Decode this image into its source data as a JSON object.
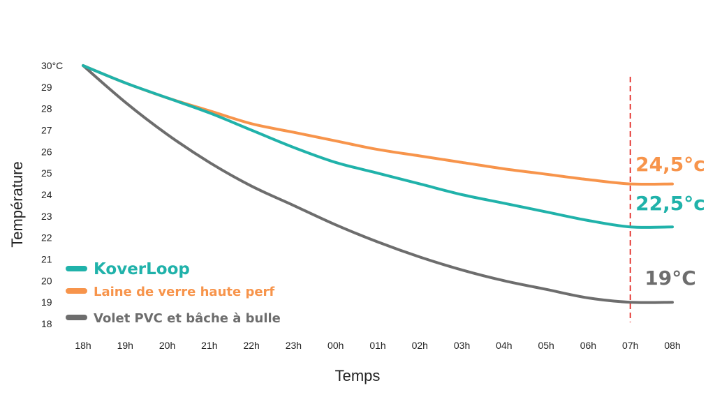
{
  "chart_data": {
    "type": "line",
    "xlabel": "Temps",
    "ylabel": "Température",
    "categories": [
      "18h",
      "19h",
      "20h",
      "21h",
      "22h",
      "23h",
      "00h",
      "01h",
      "02h",
      "03h",
      "04h",
      "05h",
      "06h",
      "07h",
      "08h"
    ],
    "y_ticks": [
      "30°C",
      "29",
      "28",
      "27",
      "26",
      "25",
      "24",
      "23",
      "22",
      "21",
      "20",
      "19",
      "18"
    ],
    "ylim": [
      18,
      30
    ],
    "grid": false,
    "legend_position": "bottom-left",
    "reference_line": {
      "x": "07h",
      "color": "#e53935",
      "style": "dashed"
    },
    "series": [
      {
        "name": "KoverLoop",
        "color": "#20b2aa",
        "values": [
          30,
          29.2,
          28.5,
          27.8,
          27.0,
          26.2,
          25.5,
          25.0,
          24.5,
          24.0,
          23.6,
          23.2,
          22.8,
          22.5,
          22.5
        ],
        "end_label": "22,5°c"
      },
      {
        "name": "Laine de verre haute perf",
        "color": "#f7944b",
        "values": [
          30,
          29.2,
          28.5,
          27.9,
          27.3,
          26.9,
          26.5,
          26.1,
          25.8,
          25.5,
          25.2,
          24.95,
          24.7,
          24.5,
          24.5
        ],
        "end_label": "24,5°c"
      },
      {
        "name": "Volet PVC et bâche à bulle",
        "color": "#6d6d6d",
        "values": [
          30,
          28.3,
          26.8,
          25.5,
          24.4,
          23.5,
          22.6,
          21.8,
          21.1,
          20.5,
          20.0,
          19.6,
          19.2,
          19.0,
          19.0
        ],
        "end_label": "19°C"
      }
    ]
  }
}
